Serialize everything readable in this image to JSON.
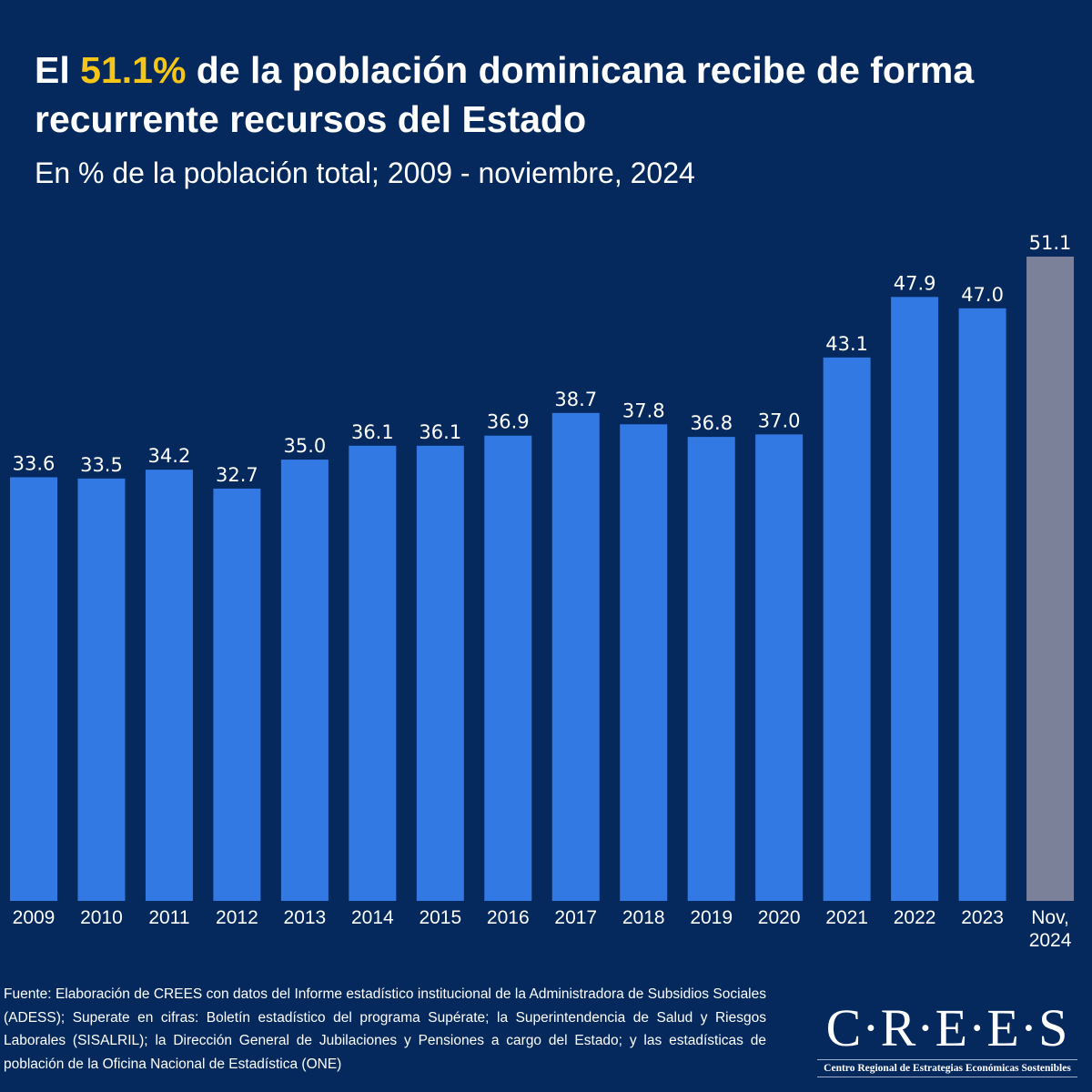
{
  "header": {
    "title_pre": "El ",
    "title_highlight": "51.1%",
    "title_post": " de la población dominicana recibe de forma recurrente recursos del Estado",
    "subtitle": "En % de la población total; 2009 - noviembre, 2024"
  },
  "chart_data": {
    "type": "bar",
    "title": "El 51.1% de la población dominicana recibe de forma recurrente recursos del Estado",
    "subtitle": "En % de la población total; 2009 - noviembre, 2024",
    "xlabel": "",
    "ylabel": "",
    "ylim": [
      0,
      51.1
    ],
    "grid": false,
    "categories": [
      "2009",
      "2010",
      "2011",
      "2012",
      "2013",
      "2014",
      "2015",
      "2016",
      "2017",
      "2018",
      "2019",
      "2020",
      "2021",
      "2022",
      "2023",
      "Nov,\n2024"
    ],
    "values": [
      33.6,
      33.5,
      34.2,
      32.7,
      35.0,
      36.1,
      36.1,
      36.9,
      38.7,
      37.8,
      36.8,
      37.0,
      43.1,
      47.9,
      47.0,
      51.1
    ],
    "labels": [
      "33.6",
      "33.5",
      "34.2",
      "32.7",
      "35.0",
      "36.1",
      "36.1",
      "36.9",
      "38.7",
      "37.8",
      "36.8",
      "37.0",
      "43.1",
      "47.9",
      "47.0",
      "51.1"
    ],
    "colors": {
      "bar": "#3379e3",
      "highlight_bar": "#7a8199",
      "background": "#05295c",
      "accent": "#f5c518"
    }
  },
  "footer": {
    "source": "Fuente: Elaboración de CREES con datos del Informe estadístico institucional de la Administradora de Subsidios Sociales (ADESS);  Superate en cifras: Boletín estadístico del programa Supérate; la Superintendencia de Salud y Riesgos Laborales (SISALRIL); la Dirección General de Jubilaciones y Pensiones a cargo del Estado; y  las estadísticas de población de la Oficina Nacional de Estadística (ONE)",
    "logo_text": "C·R·E·E·S",
    "logo_subtitle": "Centro Regional de Estrategias Económicas Sostenibles"
  }
}
